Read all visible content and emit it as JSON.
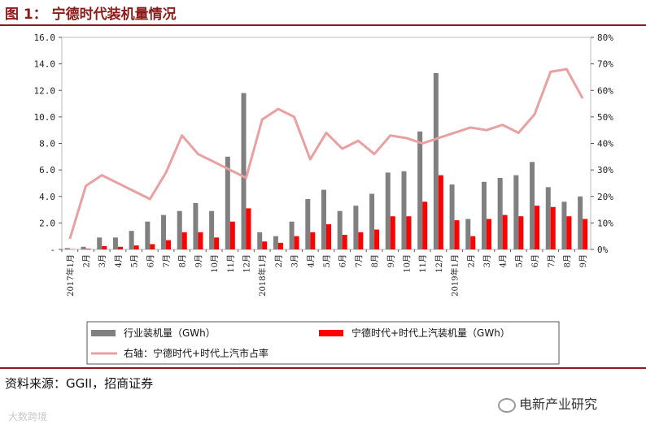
{
  "figure": {
    "title": "图 1： 宁德时代装机量情况",
    "source": "资料来源：GGII，招商证券",
    "watermark_left": "大数跨境",
    "watermark_right": "电新产业研究"
  },
  "chart_data": {
    "type": "bar+line",
    "categories": [
      "2017年1月",
      "2月",
      "3月",
      "4月",
      "5月",
      "6月",
      "7月",
      "8月",
      "9月",
      "10月",
      "11月",
      "12月",
      "2018年1月",
      "2月",
      "3月",
      "4月",
      "5月",
      "6月",
      "7月",
      "8月",
      "9月",
      "10月",
      "11月",
      "12月",
      "2019年1月",
      "2月",
      "3月",
      "4月",
      "5月",
      "6月",
      "7月",
      "8月",
      "9月"
    ],
    "y_left": {
      "min": 0,
      "max": 16,
      "ticks": [
        "-",
        "2.0",
        "4.0",
        "6.0",
        "8.0",
        "10.0",
        "12.0",
        "14.0",
        "16.0"
      ]
    },
    "y_right": {
      "min": 0,
      "max": 80,
      "ticks": [
        "0%",
        "10%",
        "20%",
        "30%",
        "40%",
        "50%",
        "60%",
        "70%",
        "80%"
      ]
    },
    "series": [
      {
        "name": "行业装机量（GWh）",
        "type": "bar",
        "axis": "left",
        "color": "#808080",
        "values": [
          0.1,
          0.2,
          0.9,
          0.9,
          1.4,
          2.1,
          2.6,
          2.9,
          3.5,
          2.9,
          7.0,
          11.8,
          1.3,
          1.0,
          2.1,
          3.8,
          4.5,
          2.9,
          3.3,
          4.2,
          5.8,
          5.9,
          8.9,
          13.3,
          4.9,
          2.3,
          5.1,
          5.4,
          5.6,
          6.6,
          4.7,
          3.6,
          4.0
        ]
      },
      {
        "name": "宁德时代+时代上汽装机量（GWh）",
        "type": "bar",
        "axis": "left",
        "color": "#ff0000",
        "values": [
          0.02,
          0.05,
          0.25,
          0.2,
          0.3,
          0.4,
          0.7,
          1.3,
          1.3,
          0.9,
          2.1,
          3.1,
          0.6,
          0.5,
          1.0,
          1.3,
          1.9,
          1.1,
          1.3,
          1.5,
          2.5,
          2.5,
          3.6,
          5.6,
          2.2,
          1.0,
          2.3,
          2.6,
          2.5,
          3.3,
          3.2,
          2.5,
          2.3
        ]
      },
      {
        "name": "右轴：宁德时代+时代上汽市占率",
        "type": "line",
        "axis": "right",
        "color": "#e8a0a0",
        "values": [
          4,
          24,
          28,
          25,
          22,
          19,
          29,
          43,
          36,
          33,
          30,
          27,
          49,
          53,
          50,
          34,
          44,
          38,
          41,
          36,
          43,
          42,
          40,
          42,
          44,
          46,
          45,
          47,
          44,
          51,
          67,
          68,
          57
        ]
      }
    ],
    "legend": [
      {
        "label": "行业装机量（GWh）",
        "color": "#808080",
        "kind": "bar"
      },
      {
        "label": "宁德时代+时代上汽装机量（GWh）",
        "color": "#ff0000",
        "kind": "bar"
      },
      {
        "label": "右轴：宁德时代+时代上汽市占率",
        "color": "#e8a0a0",
        "kind": "line"
      }
    ]
  }
}
